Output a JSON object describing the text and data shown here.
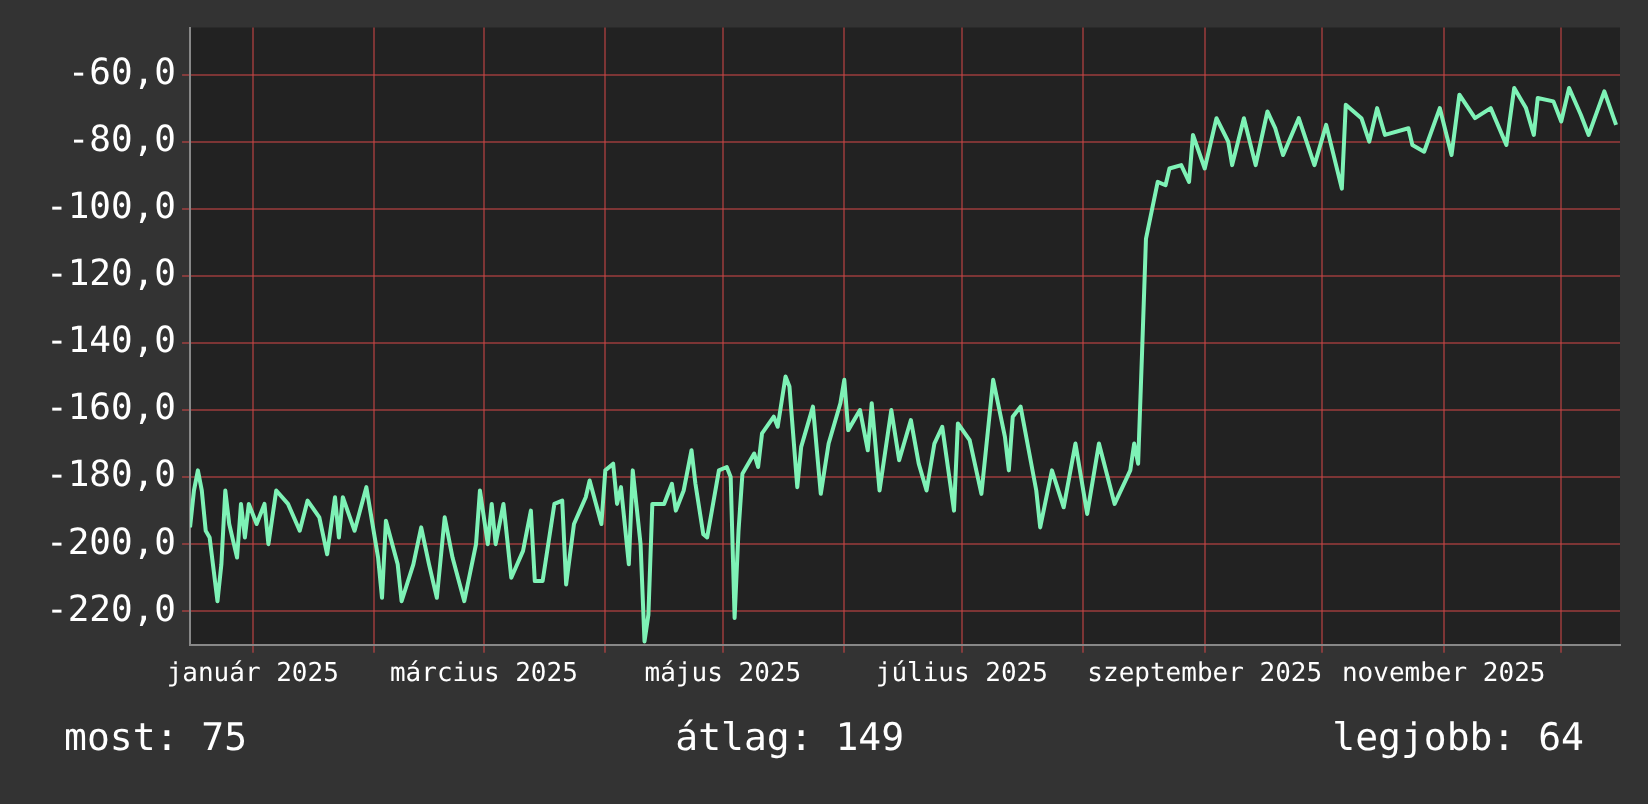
{
  "chart_data": {
    "type": "line",
    "color": "#7ef2b6",
    "x": [
      "2024-12-16",
      "2024-12-17",
      "2024-12-18",
      "2024-12-19",
      "2024-12-20",
      "2024-12-21",
      "2024-12-23",
      "2024-12-24",
      "2024-12-25",
      "2024-12-26",
      "2024-12-28",
      "2024-12-29",
      "2024-12-30",
      "2024-12-31",
      "2025-01-02",
      "2025-01-04",
      "2025-01-05",
      "2025-01-07",
      "2025-01-10",
      "2025-01-13",
      "2025-01-15",
      "2025-01-18",
      "2025-01-20",
      "2025-01-22",
      "2025-01-23",
      "2025-01-24",
      "2025-01-27",
      "2025-01-30",
      "2025-02-02",
      "2025-02-03",
      "2025-02-04",
      "2025-02-07",
      "2025-02-08",
      "2025-02-11",
      "2025-02-13",
      "2025-02-15",
      "2025-02-17",
      "2025-02-19",
      "2025-02-21",
      "2025-02-24",
      "2025-02-27",
      "2025-02-28",
      "2025-03-02",
      "2025-03-03",
      "2025-03-04",
      "2025-03-06",
      "2025-03-08",
      "2025-03-11",
      "2025-03-13",
      "2025-03-14",
      "2025-03-16",
      "2025-03-19",
      "2025-03-21",
      "2025-03-22",
      "2025-03-24",
      "2025-03-27",
      "2025-03-28",
      "2025-03-31",
      "2025-04-01",
      "2025-04-03",
      "2025-04-04",
      "2025-04-05",
      "2025-04-07",
      "2025-04-08",
      "2025-04-10",
      "2025-04-11",
      "2025-04-12",
      "2025-04-13",
      "2025-04-16",
      "2025-04-18",
      "2025-04-19",
      "2025-04-21",
      "2025-04-23",
      "2025-04-24",
      "2025-04-26",
      "2025-04-27",
      "2025-04-30",
      "2025-05-02",
      "2025-05-03",
      "2025-05-04",
      "2025-05-05",
      "2025-05-06",
      "2025-05-09",
      "2025-05-10",
      "2025-05-11",
      "2025-05-14",
      "2025-05-15",
      "2025-05-17",
      "2025-05-18",
      "2025-05-20",
      "2025-05-21",
      "2025-05-24",
      "2025-05-26",
      "2025-05-28",
      "2025-05-31",
      "2025-06-01",
      "2025-06-02",
      "2025-06-05",
      "2025-06-07",
      "2025-06-08",
      "2025-06-10",
      "2025-06-13",
      "2025-06-15",
      "2025-06-18",
      "2025-06-20",
      "2025-06-22",
      "2025-06-24",
      "2025-06-26",
      "2025-06-29",
      "2025-06-30",
      "2025-07-03",
      "2025-07-06",
      "2025-07-09",
      "2025-07-12",
      "2025-07-13",
      "2025-07-14",
      "2025-07-16",
      "2025-07-20",
      "2025-07-21",
      "2025-07-24",
      "2025-07-27",
      "2025-07-30",
      "2025-08-02",
      "2025-08-05",
      "2025-08-09",
      "2025-08-13",
      "2025-08-14",
      "2025-08-15",
      "2025-08-16",
      "2025-08-17",
      "2025-08-20",
      "2025-08-22",
      "2025-08-23",
      "2025-08-26",
      "2025-08-28",
      "2025-08-29",
      "2025-09-01",
      "2025-09-04",
      "2025-09-07",
      "2025-09-08",
      "2025-09-11",
      "2025-09-14",
      "2025-09-17",
      "2025-09-19",
      "2025-09-21",
      "2025-09-25",
      "2025-09-29",
      "2025-10-02",
      "2025-10-06",
      "2025-10-07",
      "2025-10-11",
      "2025-10-13",
      "2025-10-15",
      "2025-10-17",
      "2025-10-23",
      "2025-10-24",
      "2025-10-27",
      "2025-10-31",
      "2025-11-03",
      "2025-11-05",
      "2025-11-09",
      "2025-11-13",
      "2025-11-17",
      "2025-11-19",
      "2025-11-22",
      "2025-11-24",
      "2025-11-25",
      "2025-11-29",
      "2025-12-01",
      "2025-12-03",
      "2025-12-06",
      "2025-12-08",
      "2025-12-12",
      "2025-12-15"
    ],
    "values": [
      -195,
      -184,
      -178,
      -184,
      -196,
      -198,
      -217,
      -206,
      -184,
      -194,
      -204,
      -188,
      -198,
      -188,
      -194,
      -188,
      -200,
      -184,
      -188,
      -196,
      -187,
      -192,
      -203,
      -186,
      -198,
      -186,
      -196,
      -183,
      -204,
      -216,
      -193,
      -206,
      -217,
      -206,
      -195,
      -206,
      -216,
      -192,
      -204,
      -217,
      -200,
      -184,
      -200,
      -188,
      -200,
      -188,
      -210,
      -202,
      -190,
      -211,
      -211,
      -188,
      -187,
      -212,
      -194,
      -186,
      -181,
      -194,
      -178,
      -176,
      -188,
      -183,
      -206,
      -178,
      -200,
      -229,
      -221,
      -188,
      -188,
      -182,
      -190,
      -184,
      -172,
      -182,
      -197,
      -198,
      -178,
      -177,
      -180,
      -222,
      -196,
      -179,
      -173,
      -177,
      -167,
      -162,
      -165,
      -150,
      -153,
      -183,
      -171,
      -159,
      -185,
      -170,
      -158,
      -151,
      -166,
      -160,
      -172,
      -158,
      -184,
      -160,
      -175,
      -163,
      -176,
      -184,
      -170,
      -165,
      -190,
      -164,
      -169,
      -185,
      -151,
      -168,
      -178,
      -162,
      -159,
      -184,
      -195,
      -178,
      -189,
      -170,
      -191,
      -170,
      -188,
      -178,
      -170,
      -176,
      -143,
      -109,
      -92,
      -93,
      -88,
      -87,
      -92,
      -78,
      -88,
      -73,
      -80,
      -87,
      -73,
      -87,
      -71,
      -76,
      -84,
      -73,
      -87,
      -75,
      -94,
      -69,
      -73,
      -80,
      -70,
      -78,
      -76,
      -81,
      -83,
      -70,
      -84,
      -66,
      -73,
      -70,
      -81,
      -64,
      -70,
      -78,
      -67,
      -68,
      -74,
      -64,
      -72,
      -78,
      -65,
      -75
    ],
    "xlim": [
      "2024-12-16",
      "2025-12-16"
    ],
    "xticks": [
      {
        "value": "2025-01-01",
        "label": "január 2025"
      },
      {
        "value": "2025-02-01",
        "label": null
      },
      {
        "value": "2025-03-01",
        "label": "március 2025"
      },
      {
        "value": "2025-04-01",
        "label": null
      },
      {
        "value": "2025-05-01",
        "label": "május 2025"
      },
      {
        "value": "2025-06-01",
        "label": null
      },
      {
        "value": "2025-07-01",
        "label": "július 2025"
      },
      {
        "value": "2025-08-01",
        "label": null
      },
      {
        "value": "2025-09-01",
        "label": "szeptember 2025"
      },
      {
        "value": "2025-10-01",
        "label": null
      },
      {
        "value": "2025-11-01",
        "label": "november 2025"
      },
      {
        "value": "2025-12-01",
        "label": null
      }
    ],
    "ylim": [
      -230,
      -46
    ],
    "yticks": [
      {
        "value": -220,
        "label": "-220,0"
      },
      {
        "value": -200,
        "label": "-200,0"
      },
      {
        "value": -180,
        "label": "-180,0"
      },
      {
        "value": -160,
        "label": "-160,0"
      },
      {
        "value": -140,
        "label": "-140,0"
      },
      {
        "value": -120,
        "label": "-120,0"
      },
      {
        "value": -100,
        "label": "-100,0"
      },
      {
        "value": -80,
        "label": "-80,0"
      },
      {
        "value": -60,
        "label": "-60,0"
      }
    ],
    "grid": true,
    "annotations": [
      "most: 75",
      "átlag: 149",
      "legjobb: 64"
    ]
  }
}
